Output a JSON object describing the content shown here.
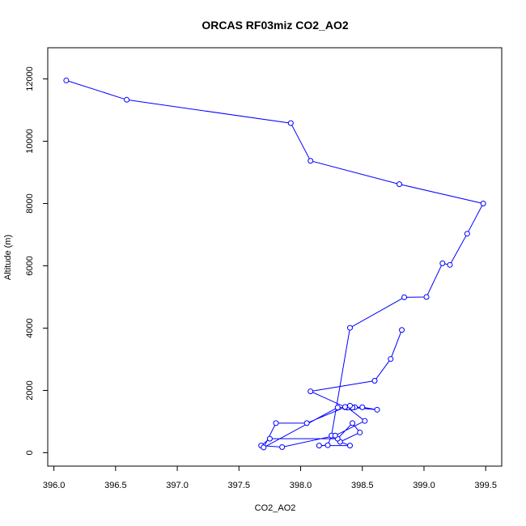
{
  "chart_data": {
    "type": "line",
    "title": "ORCAS RF03miz CO2_AO2",
    "xlabel": "CO2_AO2",
    "ylabel": "Altitude (m)",
    "xlim": [
      395.95,
      399.63
    ],
    "ylim": [
      -430,
      13000
    ],
    "x_ticks": [
      396.0,
      396.5,
      397.0,
      397.5,
      398.0,
      398.5,
      399.0,
      399.5
    ],
    "x_tick_labels": [
      "396.0",
      "396.5",
      "397.0",
      "397.5",
      "398.0",
      "398.5",
      "399.0",
      "399.5"
    ],
    "y_ticks": [
      0,
      2000,
      4000,
      6000,
      8000,
      10000,
      12000
    ],
    "y_tick_labels": [
      "0",
      "2000",
      "4000",
      "6000",
      "8000",
      "10000",
      "12000"
    ],
    "series_color": "#0000ff",
    "series": [
      {
        "x": [
          396.1,
          396.59,
          397.92,
          398.08,
          398.8,
          399.48,
          399.35,
          399.21,
          399.15,
          399.02,
          398.84,
          398.4,
          398.25,
          398.22,
          398.15,
          398.4,
          398.32,
          398.48,
          398.42,
          398.3,
          397.75,
          397.68,
          397.85,
          398.28,
          398.52,
          398.38,
          398.3,
          397.7,
          397.8,
          398.05,
          398.36,
          398.44,
          398.5,
          398.62,
          398.42,
          398.4,
          398.36,
          398.08,
          398.6,
          398.73,
          398.82
        ],
        "y": [
          11950,
          11330,
          10580,
          9370,
          8620,
          8000,
          7030,
          6030,
          6080,
          5000,
          4990,
          4010,
          550,
          240,
          230,
          230,
          350,
          650,
          950,
          450,
          450,
          230,
          180,
          550,
          1020,
          1450,
          1450,
          170,
          950,
          950,
          1460,
          1460,
          1460,
          1380,
          1450,
          1510,
          1470,
          1970,
          2310,
          3010,
          3940
        ]
      }
    ]
  }
}
